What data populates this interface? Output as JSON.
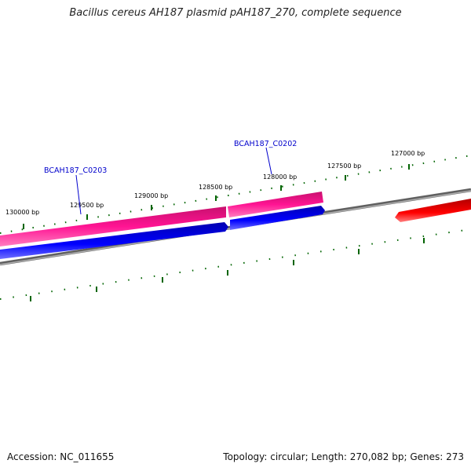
{
  "title": "Bacillus cereus AH187 plasmid pAH187_270, complete sequence",
  "footer": {
    "accession": "Accession: NC_011655",
    "summary": "Topology: circular; Length: 270,082 bp; Genes: 273"
  },
  "ruler": {
    "labels": [
      "130000 bp",
      "129500 bp",
      "129000 bp",
      "128500 bp",
      "128000 bp",
      "127500 bp",
      "127000 bp"
    ]
  },
  "genes": [
    {
      "name": "BCAH187_C0203",
      "labeled": true
    },
    {
      "name": "BCAH187_C0202",
      "labeled": true
    }
  ],
  "colors": {
    "forward_strand": "#ff1493",
    "reverse_strand": "#0000ff",
    "other_feature": "#ff0000",
    "backbone": "#808080",
    "ticks": "#006400",
    "gene_label": "#0000cc"
  }
}
